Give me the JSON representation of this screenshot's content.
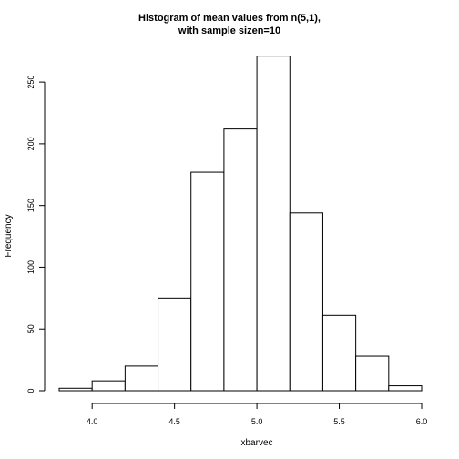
{
  "chart_data": {
    "type": "bar",
    "title_line1": "Histogram of mean values from n(5,1),",
    "title_line2": "with sample sizen=10",
    "xlabel": "xbarvec",
    "ylabel": "Frequency",
    "xlim": [
      3.8,
      6.0
    ],
    "ylim": [
      0,
      270
    ],
    "x_ticks": [
      4.0,
      4.5,
      5.0,
      5.5,
      6.0
    ],
    "x_tick_labels": [
      "4.0",
      "4.5",
      "5.0",
      "5.5",
      "6.0"
    ],
    "y_ticks": [
      0,
      50,
      100,
      150,
      200,
      250
    ],
    "y_tick_labels": [
      "0",
      "50",
      "100",
      "150",
      "200",
      "250"
    ],
    "bins": [
      {
        "start": 3.8,
        "end": 4.0,
        "count": 2
      },
      {
        "start": 4.0,
        "end": 4.2,
        "count": 8
      },
      {
        "start": 4.2,
        "end": 4.4,
        "count": 20
      },
      {
        "start": 4.4,
        "end": 4.6,
        "count": 75
      },
      {
        "start": 4.6,
        "end": 4.8,
        "count": 177
      },
      {
        "start": 4.8,
        "end": 5.0,
        "count": 212
      },
      {
        "start": 5.0,
        "end": 5.2,
        "count": 271
      },
      {
        "start": 5.2,
        "end": 5.4,
        "count": 144
      },
      {
        "start": 5.4,
        "end": 5.6,
        "count": 61
      },
      {
        "start": 5.6,
        "end": 5.8,
        "count": 28
      },
      {
        "start": 5.8,
        "end": 6.0,
        "count": 4
      }
    ],
    "grid": false
  }
}
